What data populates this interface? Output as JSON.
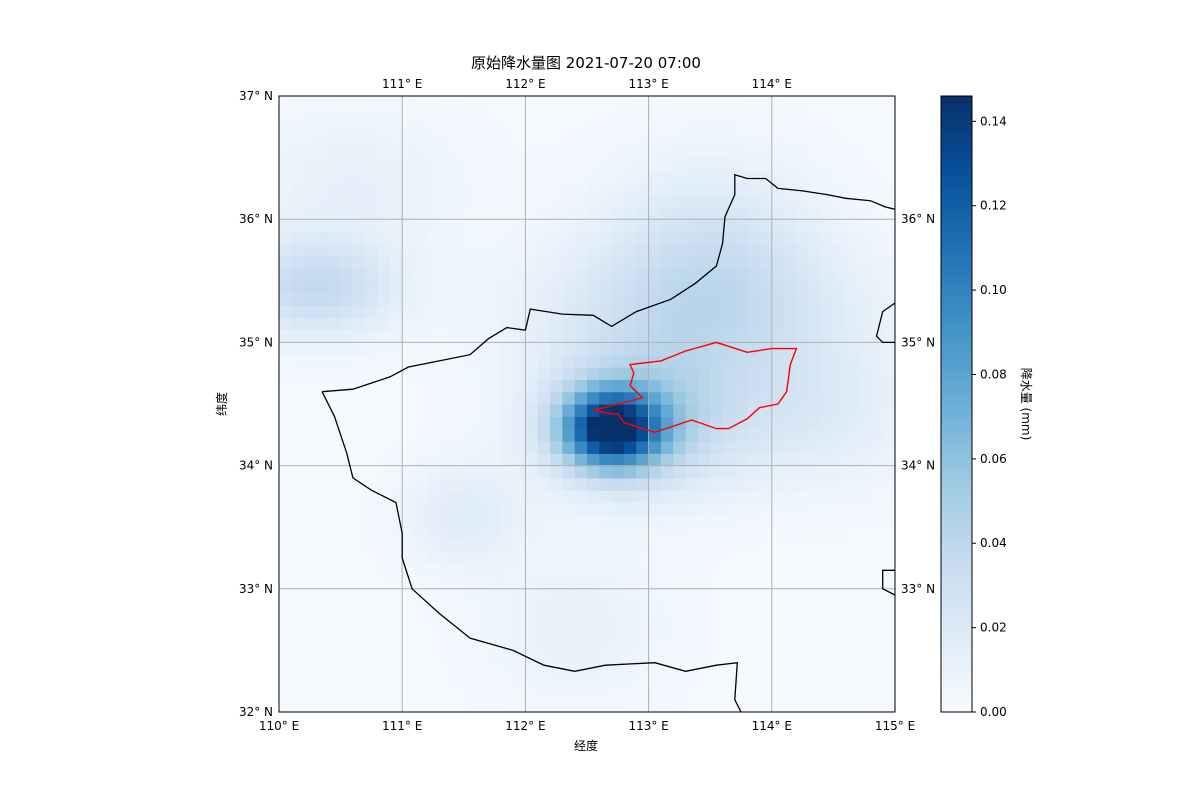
{
  "figure": {
    "title": "原始降水量图 2021-07-20 07:00",
    "xlabel": "经度",
    "ylabel": "纬度",
    "colorbar_label": "降水量 (mm)"
  },
  "chart_data": {
    "type": "heatmap",
    "title": "原始降水量图 2021-07-20 07:00",
    "xlabel": "经度",
    "ylabel": "纬度",
    "xlim": [
      110,
      115
    ],
    "ylim": [
      32,
      37
    ],
    "grid": true,
    "colormap": "Blues",
    "value_range": [
      0,
      0.146
    ],
    "colorbar": {
      "label": "降水量 (mm)",
      "ticks": [
        "0.00",
        "0.02",
        "0.04",
        "0.06",
        "0.08",
        "0.10",
        "0.12",
        "0.14"
      ],
      "tick_values": [
        0,
        0.02,
        0.04,
        0.06,
        0.08,
        0.1,
        0.12,
        0.14
      ]
    },
    "x_ticks_bottom": [
      {
        "value": 110,
        "label": "110° E"
      },
      {
        "value": 111,
        "label": "111° E"
      },
      {
        "value": 112,
        "label": "112° E"
      },
      {
        "value": 113,
        "label": "113° E"
      },
      {
        "value": 114,
        "label": "114° E"
      },
      {
        "value": 115,
        "label": "115° E"
      }
    ],
    "x_ticks_top": [
      {
        "value": 111,
        "label": "111° E"
      },
      {
        "value": 112,
        "label": "112° E"
      },
      {
        "value": 113,
        "label": "113° E"
      },
      {
        "value": 114,
        "label": "114° E"
      }
    ],
    "y_ticks_left": [
      {
        "value": 32,
        "label": "32° N"
      },
      {
        "value": 33,
        "label": "33° N"
      },
      {
        "value": 34,
        "label": "34° N"
      },
      {
        "value": 35,
        "label": "35° N"
      },
      {
        "value": 36,
        "label": "36° N"
      },
      {
        "value": 37,
        "label": "37° N"
      }
    ],
    "y_ticks_right": [
      {
        "value": 33,
        "label": "33° N"
      },
      {
        "value": 34,
        "label": "34° N"
      },
      {
        "value": 35,
        "label": "35° N"
      },
      {
        "value": 36,
        "label": "36° N"
      }
    ],
    "precip_blobs": [
      {
        "lon": 112.7,
        "lat": 34.3,
        "peak": 0.13,
        "sx": 0.28,
        "sy": 0.22
      },
      {
        "lon": 112.95,
        "lat": 34.35,
        "peak": 0.04,
        "sx": 0.55,
        "sy": 0.4
      },
      {
        "lon": 110.3,
        "lat": 35.45,
        "peak": 0.035,
        "sx": 0.45,
        "sy": 0.28
      },
      {
        "lon": 113.4,
        "lat": 35.2,
        "peak": 0.028,
        "sx": 0.9,
        "sy": 0.45
      },
      {
        "lon": 113.5,
        "lat": 35.8,
        "peak": 0.02,
        "sx": 0.6,
        "sy": 0.5
      },
      {
        "lon": 111.5,
        "lat": 33.6,
        "peak": 0.015,
        "sx": 0.35,
        "sy": 0.3
      },
      {
        "lon": 112.4,
        "lat": 32.7,
        "peak": 0.01,
        "sx": 0.5,
        "sy": 0.4
      },
      {
        "lon": 114.3,
        "lat": 34.4,
        "peak": 0.015,
        "sx": 0.6,
        "sy": 0.4
      },
      {
        "lon": 110.6,
        "lat": 36.3,
        "peak": 0.01,
        "sx": 0.6,
        "sy": 0.4
      }
    ],
    "province_boundary": [
      [
        110.35,
        34.6
      ],
      [
        110.6,
        34.62
      ],
      [
        110.9,
        34.72
      ],
      [
        111.05,
        34.8
      ],
      [
        111.3,
        34.85
      ],
      [
        111.55,
        34.9
      ],
      [
        111.7,
        35.03
      ],
      [
        111.85,
        35.12
      ],
      [
        112.0,
        35.1
      ],
      [
        112.04,
        35.27
      ],
      [
        112.3,
        35.23
      ],
      [
        112.55,
        35.22
      ],
      [
        112.7,
        35.13
      ],
      [
        112.9,
        35.25
      ],
      [
        113.18,
        35.35
      ],
      [
        113.38,
        35.48
      ],
      [
        113.55,
        35.62
      ],
      [
        113.6,
        35.8
      ],
      [
        113.62,
        36.02
      ],
      [
        113.7,
        36.2
      ],
      [
        113.7,
        36.36
      ],
      [
        113.8,
        36.33
      ],
      [
        113.95,
        36.33
      ],
      [
        114.05,
        36.25
      ],
      [
        114.25,
        36.23
      ],
      [
        114.45,
        36.2
      ],
      [
        114.6,
        36.17
      ],
      [
        114.8,
        36.15
      ],
      [
        114.92,
        36.1
      ],
      [
        115.0,
        36.08
      ]
    ],
    "province_boundary_south": [
      [
        110.35,
        34.6
      ],
      [
        110.45,
        34.4
      ],
      [
        110.55,
        34.1
      ],
      [
        110.6,
        33.9
      ],
      [
        110.75,
        33.8
      ],
      [
        110.95,
        33.7
      ],
      [
        111.0,
        33.45
      ],
      [
        111.0,
        33.25
      ],
      [
        111.08,
        33.0
      ],
      [
        111.3,
        32.8
      ],
      [
        111.55,
        32.6
      ],
      [
        111.9,
        32.5
      ],
      [
        112.15,
        32.38
      ],
      [
        112.4,
        32.33
      ],
      [
        112.65,
        32.38
      ],
      [
        113.05,
        32.4
      ],
      [
        113.3,
        32.33
      ],
      [
        113.55,
        32.38
      ],
      [
        113.72,
        32.4
      ],
      [
        113.7,
        32.1
      ],
      [
        113.75,
        32.0
      ]
    ],
    "province_boundary_east_fragments": [
      [
        [
          115.0,
          35.32
        ],
        [
          114.9,
          35.25
        ],
        [
          114.85,
          35.05
        ],
        [
          114.9,
          35.0
        ],
        [
          115.0,
          35.0
        ]
      ],
      [
        [
          115.0,
          33.15
        ],
        [
          114.9,
          33.15
        ],
        [
          114.9,
          33.0
        ],
        [
          115.0,
          32.95
        ]
      ]
    ],
    "region_highlight": [
      [
        112.85,
        34.82
      ],
      [
        113.1,
        34.85
      ],
      [
        113.3,
        34.93
      ],
      [
        113.55,
        35.0
      ],
      [
        113.8,
        34.92
      ],
      [
        114.0,
        34.95
      ],
      [
        114.2,
        34.95
      ],
      [
        114.15,
        34.82
      ],
      [
        114.12,
        34.6
      ],
      [
        114.05,
        34.5
      ],
      [
        113.9,
        34.47
      ],
      [
        113.8,
        34.38
      ],
      [
        113.65,
        34.3
      ],
      [
        113.55,
        34.3
      ],
      [
        113.35,
        34.37
      ],
      [
        113.2,
        34.32
      ],
      [
        113.05,
        34.27
      ],
      [
        112.95,
        34.3
      ],
      [
        112.8,
        34.35
      ],
      [
        112.75,
        34.42
      ],
      [
        112.7,
        34.42
      ],
      [
        112.55,
        34.45
      ],
      [
        112.75,
        34.5
      ],
      [
        112.95,
        34.55
      ],
      [
        112.85,
        34.65
      ],
      [
        112.88,
        34.75
      ],
      [
        112.85,
        34.82
      ]
    ]
  }
}
